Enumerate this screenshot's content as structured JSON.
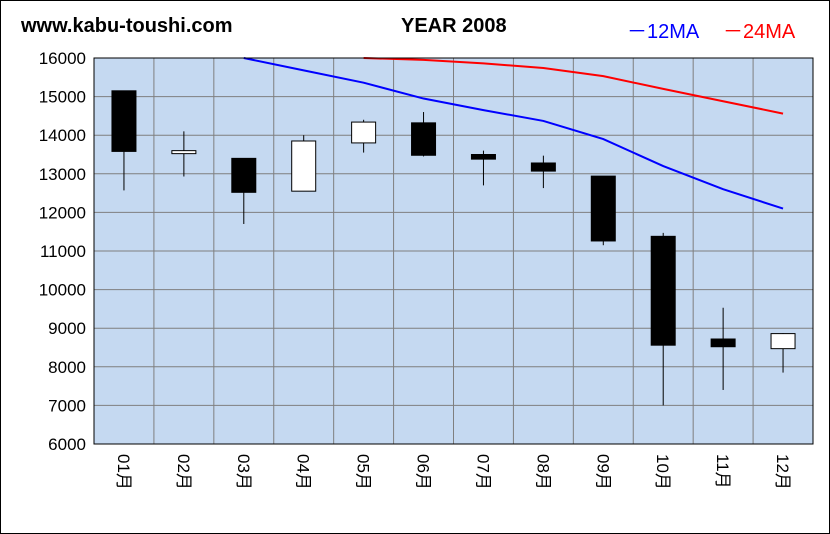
{
  "header": {
    "site": "www.kabu-toushi.com",
    "title": "YEAR 2008",
    "legend_ma12": "－12MA",
    "legend_ma24": "－24MA"
  },
  "colors": {
    "plot_bg": "#c5d9f1",
    "grid": "#7f7f7f",
    "ma12": "#0000ff",
    "ma24": "#ff0000",
    "candle_down": "#000000",
    "candle_up": "#ffffff"
  },
  "chart_data": {
    "type": "candlestick",
    "title": "YEAR 2008",
    "categories": [
      "01月",
      "02月",
      "03月",
      "04月",
      "05月",
      "06月",
      "07月",
      "08月",
      "09月",
      "10月",
      "11月",
      "12月"
    ],
    "ylim": [
      6000,
      16000
    ],
    "yticks": [
      6000,
      7000,
      8000,
      9000,
      10000,
      11000,
      12000,
      13000,
      14000,
      15000,
      16000
    ],
    "grid": true,
    "ohlc": [
      {
        "open": 15150,
        "high": 15150,
        "low": 12570,
        "close": 13580
      },
      {
        "open": 13540,
        "high": 14100,
        "low": 12930,
        "close": 13600
      },
      {
        "open": 13400,
        "high": 13400,
        "low": 11700,
        "close": 12520
      },
      {
        "open": 12550,
        "high": 14000,
        "low": 12550,
        "close": 13850
      },
      {
        "open": 13800,
        "high": 14400,
        "low": 13550,
        "close": 14340
      },
      {
        "open": 14320,
        "high": 14600,
        "low": 13450,
        "close": 13480
      },
      {
        "open": 13500,
        "high": 13600,
        "low": 12700,
        "close": 13380
      },
      {
        "open": 13280,
        "high": 13470,
        "low": 12630,
        "close": 13070
      },
      {
        "open": 12940,
        "high": 12940,
        "low": 11150,
        "close": 11260
      },
      {
        "open": 11380,
        "high": 11470,
        "low": 7000,
        "close": 8560
      },
      {
        "open": 8720,
        "high": 9530,
        "low": 7400,
        "close": 8520
      },
      {
        "open": 8470,
        "high": 8870,
        "low": 7850,
        "close": 8860
      }
    ],
    "series": [
      {
        "name": "12MA",
        "color": "#0000ff",
        "values": [
          null,
          null,
          16000,
          15680,
          15360,
          14950,
          14650,
          14370,
          13900,
          13200,
          12600,
          12100
        ]
      },
      {
        "name": "24MA",
        "color": "#ff0000",
        "values": [
          null,
          null,
          null,
          null,
          16000,
          15950,
          15860,
          15740,
          15530,
          15200,
          14880,
          14560
        ]
      }
    ]
  }
}
